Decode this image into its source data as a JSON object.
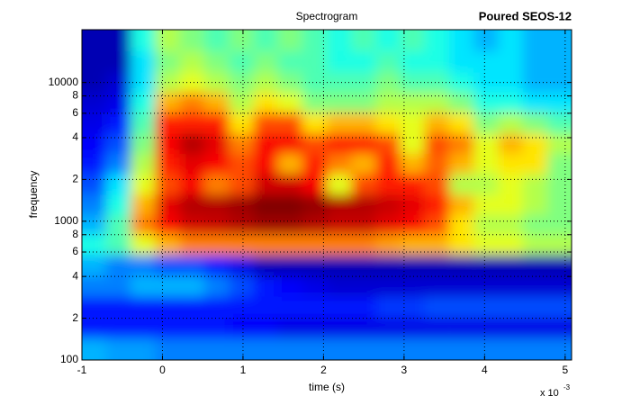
{
  "chart_data": {
    "type": "heatmap",
    "title": "Spectrogram",
    "annotation": "Poured SEOS-12",
    "x_label": "time (s)",
    "y_label": "frequency",
    "x_exponent_base": "x 10",
    "x_exponent": "-3",
    "colormap": "jet",
    "grid": true,
    "y_log": true,
    "xlim": [
      -1,
      5.08
    ],
    "ylim": [
      100,
      24000
    ],
    "xticks": [
      -1,
      0,
      1,
      2,
      3,
      4,
      5
    ],
    "yticks": [
      100,
      {
        "value": 200,
        "label": "2"
      },
      {
        "value": 400,
        "label": "4"
      },
      {
        "value": 600,
        "label": "6"
      },
      {
        "value": 800,
        "label": "8"
      },
      1000,
      {
        "value": 2000,
        "label": "2"
      },
      {
        "value": 4000,
        "label": "4"
      },
      {
        "value": 6000,
        "label": "6"
      },
      {
        "value": 8000,
        "label": "8"
      },
      10000
    ],
    "x": [
      -0.85,
      -0.55,
      -0.24,
      0.06,
      0.37,
      0.67,
      0.98,
      1.28,
      1.58,
      1.89,
      2.19,
      2.5,
      2.8,
      3.1,
      3.41,
      3.71,
      4.02,
      4.32,
      4.63,
      4.93
    ],
    "y": [
      20000,
      14000,
      10000,
      7200,
      5100,
      3600,
      2600,
      1850,
      1300,
      950,
      680,
      480,
      340,
      240,
      170,
      120
    ],
    "z": [
      [
        0.05,
        0.05,
        0.4,
        0.55,
        0.5,
        0.45,
        0.5,
        0.45,
        0.5,
        0.45,
        0.4,
        0.45,
        0.4,
        0.45,
        0.4,
        0.35,
        0.3,
        0.35,
        0.3,
        0.3
      ],
      [
        0.05,
        0.05,
        0.35,
        0.5,
        0.55,
        0.5,
        0.45,
        0.5,
        0.45,
        0.45,
        0.4,
        0.4,
        0.45,
        0.4,
        0.4,
        0.35,
        0.35,
        0.35,
        0.3,
        0.3
      ],
      [
        0.05,
        0.08,
        0.35,
        0.55,
        0.6,
        0.55,
        0.5,
        0.55,
        0.5,
        0.45,
        0.45,
        0.45,
        0.5,
        0.45,
        0.45,
        0.4,
        0.35,
        0.35,
        0.3,
        0.3
      ],
      [
        0.08,
        0.1,
        0.4,
        0.7,
        0.75,
        0.7,
        0.55,
        0.65,
        0.6,
        0.5,
        0.5,
        0.5,
        0.55,
        0.55,
        0.55,
        0.5,
        0.4,
        0.4,
        0.35,
        0.35
      ],
      [
        0.1,
        0.15,
        0.45,
        0.85,
        0.85,
        0.85,
        0.65,
        0.8,
        0.8,
        0.65,
        0.7,
        0.7,
        0.65,
        0.6,
        0.7,
        0.65,
        0.5,
        0.55,
        0.5,
        0.45
      ],
      [
        0.12,
        0.2,
        0.5,
        0.88,
        0.95,
        0.9,
        0.75,
        0.88,
        0.88,
        0.8,
        0.85,
        0.85,
        0.8,
        0.6,
        0.8,
        0.75,
        0.6,
        0.7,
        0.65,
        0.55
      ],
      [
        0.15,
        0.25,
        0.55,
        0.85,
        0.9,
        0.88,
        0.8,
        0.88,
        0.7,
        0.85,
        0.75,
        0.7,
        0.85,
        0.7,
        0.78,
        0.7,
        0.6,
        0.65,
        0.65,
        0.5
      ],
      [
        0.2,
        0.35,
        0.6,
        0.8,
        0.88,
        0.75,
        0.8,
        0.92,
        0.92,
        0.88,
        0.6,
        0.8,
        0.85,
        0.85,
        0.8,
        0.55,
        0.55,
        0.6,
        0.55,
        0.5
      ],
      [
        0.25,
        0.4,
        0.7,
        0.9,
        0.95,
        0.95,
        0.97,
        1.0,
        1.0,
        0.98,
        0.95,
        0.95,
        0.93,
        0.9,
        0.85,
        0.7,
        0.6,
        0.6,
        0.55,
        0.5
      ],
      [
        0.3,
        0.45,
        0.75,
        0.88,
        0.92,
        0.93,
        0.95,
        0.97,
        0.97,
        0.95,
        0.93,
        0.93,
        0.9,
        0.88,
        0.8,
        0.65,
        0.55,
        0.55,
        0.5,
        0.5
      ],
      [
        0.4,
        0.45,
        0.6,
        0.7,
        0.75,
        0.75,
        0.75,
        0.75,
        0.75,
        0.75,
        0.75,
        0.75,
        0.72,
        0.7,
        0.7,
        0.65,
        0.6,
        0.6,
        0.55,
        0.55
      ],
      [
        0.3,
        0.25,
        0.25,
        0.2,
        0.2,
        0.15,
        0.1,
        0.05,
        0.05,
        0.05,
        0.05,
        0.05,
        0.05,
        0.05,
        0.05,
        0.05,
        0.05,
        0.05,
        0.05,
        0.05
      ],
      [
        0.25,
        0.25,
        0.3,
        0.3,
        0.3,
        0.25,
        0.2,
        0.15,
        0.12,
        0.1,
        0.08,
        0.08,
        0.08,
        0.08,
        0.08,
        0.08,
        0.08,
        0.08,
        0.08,
        0.08
      ],
      [
        0.15,
        0.15,
        0.15,
        0.15,
        0.15,
        0.15,
        0.15,
        0.15,
        0.15,
        0.15,
        0.15,
        0.15,
        0.18,
        0.18,
        0.2,
        0.2,
        0.2,
        0.2,
        0.2,
        0.2
      ],
      [
        0.15,
        0.15,
        0.15,
        0.15,
        0.15,
        0.15,
        0.12,
        0.12,
        0.1,
        0.1,
        0.1,
        0.1,
        0.1,
        0.1,
        0.1,
        0.1,
        0.1,
        0.1,
        0.1,
        0.1
      ],
      [
        0.3,
        0.28,
        0.28,
        0.25,
        0.25,
        0.25,
        0.25,
        0.25,
        0.25,
        0.25,
        0.25,
        0.25,
        0.25,
        0.25,
        0.25,
        0.25,
        0.25,
        0.25,
        0.25,
        0.25
      ]
    ]
  }
}
